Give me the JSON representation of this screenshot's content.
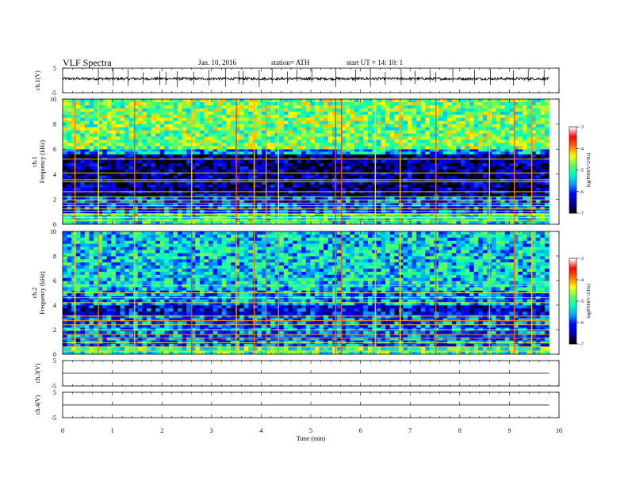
{
  "header": {
    "title": "VLF Spectra",
    "date": "Jan. 10, 2016",
    "station": "station= ATH",
    "start": "start  UT  =   14: 10: 1"
  },
  "chart_data": [
    {
      "type": "line",
      "name": "ch1-waveform",
      "ylabel": "ch.1(V)",
      "ylim": [
        -5,
        5
      ],
      "yticks": [
        "5",
        "-5"
      ],
      "xlim": [
        0,
        10
      ],
      "baseline_v": 0.7,
      "spike_times_min": [
        0.72,
        1.02,
        1.32,
        1.62,
        1.96,
        2.08,
        2.31,
        2.64,
        2.95,
        3.28,
        3.55,
        3.64,
        3.96,
        4.22,
        4.53,
        4.72,
        5.02,
        5.5,
        5.9,
        6.2,
        6.5,
        6.82,
        7.1,
        7.4,
        7.52,
        7.86,
        8.3,
        8.62,
        9.08,
        9.38,
        9.7
      ]
    },
    {
      "type": "heatmap",
      "name": "ch1-spectrogram",
      "ylabel": "ch.1\nFrequency  (kHz)",
      "ylim": [
        0,
        10
      ],
      "yticks": [
        "0",
        "2",
        "4",
        "6",
        "8",
        "10"
      ],
      "xlim": [
        0,
        9.8
      ],
      "colorbar": {
        "label": "log(PSD(V^2/Hz)",
        "range": [
          -7,
          -3
        ],
        "ticks": [
          "-3",
          "-4",
          "-5",
          "-6",
          "-7"
        ]
      },
      "bands": [
        {
          "fmin_khz": 0,
          "fmax_khz": 0.9,
          "level": -5.2,
          "note": "lines"
        },
        {
          "fmin_khz": 0.9,
          "fmax_khz": 2.2,
          "level": -6.0
        },
        {
          "fmin_khz": 2.2,
          "fmax_khz": 5.6,
          "level": -6.6
        },
        {
          "fmin_khz": 5.6,
          "fmax_khz": 6.0,
          "level": -5.6
        },
        {
          "fmin_khz": 6.0,
          "fmax_khz": 10,
          "level": -4.8
        }
      ],
      "lines_khz": [
        0.3,
        0.55,
        0.8,
        1.05,
        1.25,
        1.5,
        1.7,
        1.95,
        2.2,
        2.6,
        3.4,
        3.55,
        4.1,
        5.2
      ],
      "sferic_times_min": [
        0.25,
        0.72,
        1.45,
        2.6,
        3.5,
        3.86,
        4.1,
        4.35,
        5.5,
        5.62,
        6.3,
        6.8,
        7.52,
        8.6,
        9.1,
        9.45
      ]
    },
    {
      "type": "heatmap",
      "name": "ch2-spectrogram",
      "ylabel": "ch.2\nFrequency  (kHz)",
      "ylim": [
        0,
        10
      ],
      "yticks": [
        "0",
        "2",
        "4",
        "6",
        "8",
        "10"
      ],
      "xlim": [
        0,
        9.8
      ],
      "colorbar": {
        "label": "log(PSD(V^2/Hz)",
        "range": [
          -7,
          -3
        ],
        "ticks": [
          "-3",
          "-4",
          "-5",
          "-6",
          "-7"
        ]
      },
      "bands": [
        {
          "fmin_khz": 0,
          "fmax_khz": 0.6,
          "level": -5.0,
          "note": "lines"
        },
        {
          "fmin_khz": 0.6,
          "fmax_khz": 3.2,
          "level": -5.8
        },
        {
          "fmin_khz": 3.2,
          "fmax_khz": 4.0,
          "level": -6.3
        },
        {
          "fmin_khz": 4.0,
          "fmax_khz": 5.2,
          "level": -5.7
        },
        {
          "fmin_khz": 5.2,
          "fmax_khz": 10,
          "level": -5.4
        }
      ],
      "lines_khz": [
        0.25,
        0.6,
        0.95,
        1.3,
        1.6,
        2.0,
        2.4,
        2.75,
        3.1,
        4.2,
        4.6,
        5.0,
        5.6
      ],
      "sferic_times_min": [
        0.25,
        0.72,
        1.45,
        2.6,
        3.5,
        3.86,
        4.1,
        4.35,
        5.5,
        5.62,
        6.3,
        6.8,
        7.52,
        8.6,
        9.1,
        9.45
      ]
    },
    {
      "type": "line",
      "name": "ch3-waveform",
      "ylabel": "ch.3(V)",
      "ylim": [
        -5,
        5
      ],
      "yticks": [
        "5",
        "-5"
      ],
      "xlim": [
        0,
        10
      ],
      "baseline_v": 0
    },
    {
      "type": "line",
      "name": "ch4-waveform",
      "ylabel": "ch.4(V)",
      "ylim": [
        -5,
        5
      ],
      "yticks": [
        "5",
        "-5"
      ],
      "xlim": [
        0,
        10
      ],
      "baseline_v": 0
    }
  ],
  "xaxis": {
    "label": "Time  (min)",
    "ticks": [
      "0",
      "1",
      "2",
      "3",
      "4",
      "5",
      "6",
      "7",
      "8",
      "9",
      "10"
    ]
  },
  "colors": {
    "colormap": [
      "#000000",
      "#0000aa",
      "#0000ff",
      "#00a0ff",
      "#00ffc0",
      "#60ff60",
      "#ffff00",
      "#ff7000",
      "#ff0000",
      "#ffffff"
    ]
  }
}
